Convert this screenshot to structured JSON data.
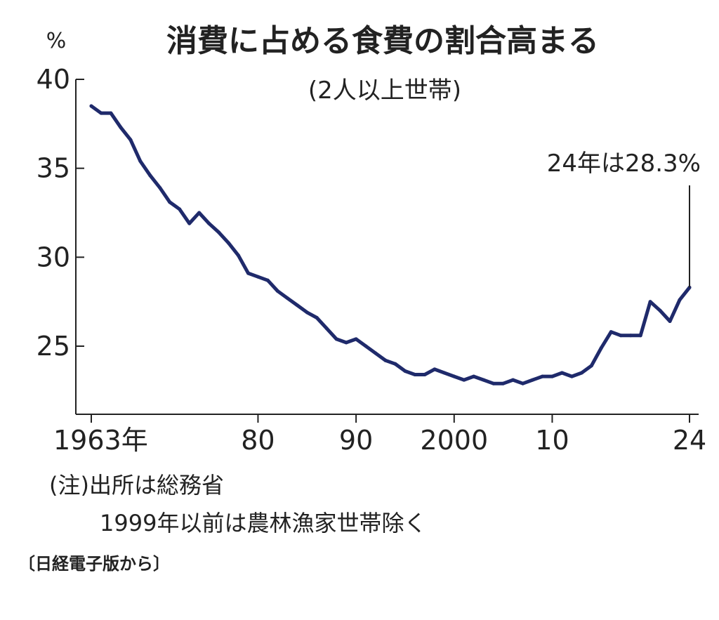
{
  "chart_data": {
    "type": "line",
    "title": "消費に占める食費の割合高まる",
    "subtitle": "(2人以上世帯)",
    "y_unit": "%",
    "ylim": [
      21,
      40
    ],
    "xlim": [
      1963,
      2024
    ],
    "y_ticks": [
      40,
      35,
      30,
      25
    ],
    "y_tick_labels": [
      "40",
      "35",
      "30",
      "25"
    ],
    "x_ticks": [
      1963,
      1980,
      1990,
      2000,
      2010,
      2024
    ],
    "x_tick_labels": [
      "1963年",
      "80",
      "90",
      "2000",
      "10",
      "24"
    ],
    "grid": false,
    "legend": "none",
    "line_color": "#1f2a6b",
    "series": [
      {
        "x": [
          1963,
          1964,
          1965,
          1966,
          1967,
          1968,
          1969,
          1970,
          1971,
          1972,
          1973,
          1974,
          1975,
          1976,
          1977,
          1978,
          1979,
          1980,
          1981,
          1982,
          1983,
          1984,
          1985,
          1986,
          1987,
          1988,
          1989,
          1990,
          1991,
          1992,
          1993,
          1994,
          1995,
          1996,
          1997,
          1998,
          1999,
          2000,
          2001,
          2002,
          2003,
          2004,
          2005,
          2006,
          2007,
          2008,
          2009,
          2010,
          2011,
          2012,
          2013,
          2014,
          2015,
          2016,
          2017,
          2018,
          2019,
          2020,
          2021,
          2022,
          2023,
          2024
        ],
        "values": [
          38.5,
          38.1,
          38.1,
          37.3,
          36.6,
          35.4,
          34.6,
          33.9,
          33.1,
          32.7,
          31.9,
          32.5,
          31.9,
          31.4,
          30.8,
          30.1,
          29.1,
          28.9,
          28.7,
          28.1,
          27.7,
          27.3,
          26.9,
          26.6,
          26.0,
          25.4,
          25.2,
          25.4,
          25.0,
          24.6,
          24.2,
          24.0,
          23.6,
          23.4,
          23.4,
          23.7,
          23.5,
          23.3,
          23.1,
          23.3,
          23.1,
          22.9,
          22.9,
          23.1,
          22.9,
          23.1,
          23.3,
          23.3,
          23.5,
          23.3,
          23.5,
          23.9,
          24.9,
          25.8,
          25.6,
          25.6,
          25.6,
          27.5,
          27.0,
          26.4,
          27.6,
          28.3
        ]
      }
    ],
    "annotation": {
      "text": "24年は28.3%",
      "x": 2024,
      "y": 28.3
    }
  },
  "notes": {
    "line1": "(注)出所は総務省",
    "line2": "1999年以前は農林漁家世帯除く"
  },
  "source": "〔日経電子版から〕"
}
